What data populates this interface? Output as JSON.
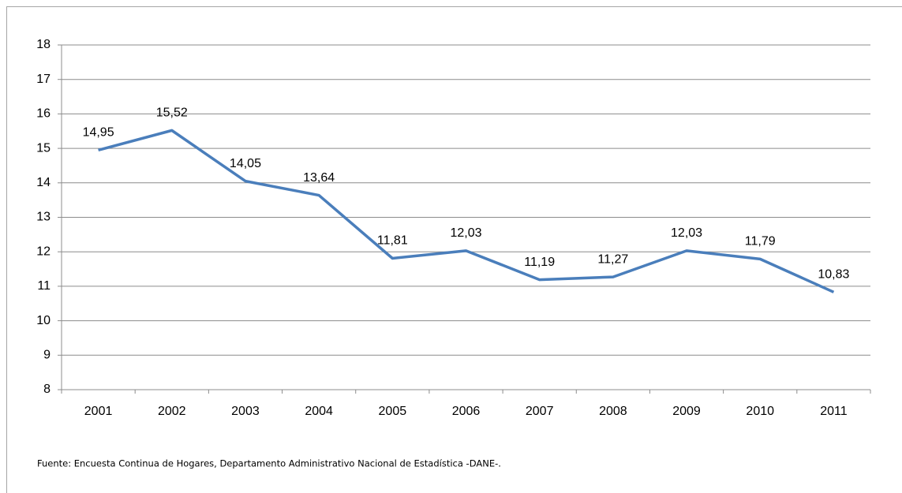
{
  "chart_data": {
    "type": "line",
    "categories": [
      "2001",
      "2002",
      "2003",
      "2004",
      "2005",
      "2006",
      "2007",
      "2008",
      "2009",
      "2010",
      "2011"
    ],
    "series": [
      {
        "color": "#4a7ebb",
        "values": [
          14.95,
          15.52,
          14.05,
          13.64,
          11.81,
          12.03,
          11.19,
          11.27,
          12.03,
          11.79,
          10.83
        ],
        "value_labels": [
          "14,95",
          "15,52",
          "14,05",
          "13,64",
          "11,81",
          "12,03",
          "11,19",
          "11,27",
          "12,03",
          "11,79",
          "10,83"
        ]
      }
    ],
    "ylim": [
      8,
      18
    ],
    "yticks": [
      8,
      9,
      10,
      11,
      12,
      13,
      14,
      15,
      16,
      17,
      18
    ],
    "grid": true,
    "source": "Fuente: Encuesta Continua de Hogares, Departamento Administrativo Nacional de Estadística -DANE-."
  }
}
